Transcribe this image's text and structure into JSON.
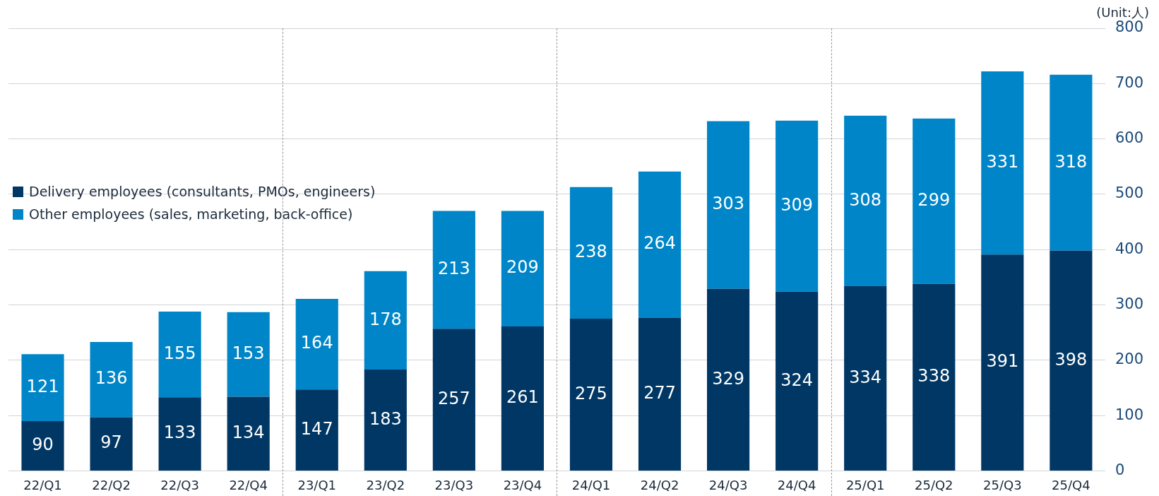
{
  "chart_data": {
    "type": "bar",
    "stacked": true,
    "ylabel": "(Unit:人)",
    "categories": [
      "22/Q1",
      "22/Q2",
      "22/Q3",
      "22/Q4",
      "23/Q1",
      "23/Q2",
      "23/Q3",
      "23/Q4",
      "24/Q1",
      "24/Q2",
      "24/Q3",
      "24/Q4",
      "25/Q1",
      "25/Q2",
      "25/Q3",
      "25/Q4"
    ],
    "series": [
      {
        "name": "Delivery employees (consultants, PMOs, engineers)",
        "color": "#003764",
        "values": [
          90,
          97,
          133,
          134,
          147,
          183,
          257,
          261,
          275,
          277,
          329,
          324,
          334,
          338,
          391,
          398
        ]
      },
      {
        "name": "Other employees (sales, marketing, back-office)",
        "color": "#0086c8",
        "values": [
          121,
          136,
          155,
          153,
          164,
          178,
          213,
          209,
          238,
          264,
          303,
          309,
          308,
          299,
          331,
          318
        ]
      }
    ],
    "ylim": [
      0,
      800
    ],
    "yticks": [
      0,
      100,
      200,
      300,
      400,
      500,
      600,
      700,
      800
    ],
    "grid": "y",
    "legend": "top left",
    "data_labels": true
  }
}
